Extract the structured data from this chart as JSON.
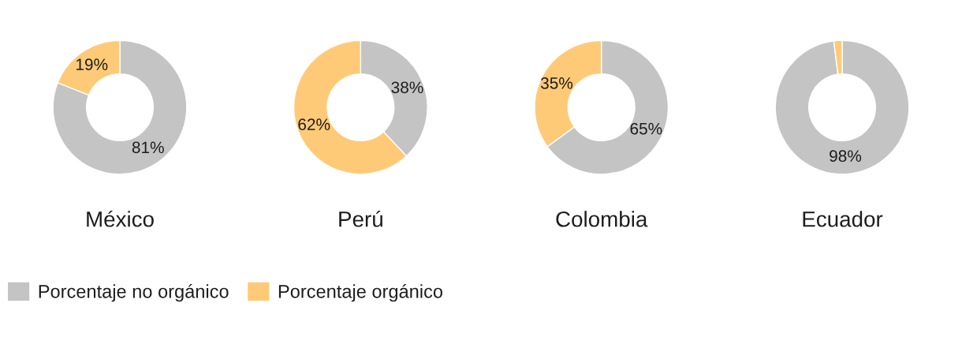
{
  "chart_data": [
    {
      "type": "donut",
      "title": "México",
      "categories": [
        "Porcentaje no orgánico",
        "Porcentaje orgánico"
      ],
      "values": [
        81,
        19
      ],
      "colors": [
        "#c4c4c4",
        "#ffca77"
      ],
      "value_labels": [
        "81%",
        "19%"
      ],
      "legend": "bottom"
    },
    {
      "type": "donut",
      "title": "Perú",
      "categories": [
        null,
        null
      ],
      "values": [
        38,
        62
      ],
      "colors": [
        "#c4c4c4",
        "#ffca77"
      ],
      "value_labels": [
        "38%",
        "62%"
      ]
    },
    {
      "type": "donut",
      "title": "Colombia",
      "categories": [
        null,
        null
      ],
      "values": [
        65,
        35
      ],
      "colors": [
        "#c4c4c4",
        "#ffca77"
      ],
      "value_labels": [
        "65%",
        "35%"
      ]
    },
    {
      "type": "donut",
      "title": "Ecuador",
      "categories": [
        null,
        null
      ],
      "values": [
        98,
        2
      ],
      "colors": [
        "#c4c4c4",
        "#ffca77"
      ],
      "value_labels": [
        "98%",
        null
      ]
    }
  ]
}
